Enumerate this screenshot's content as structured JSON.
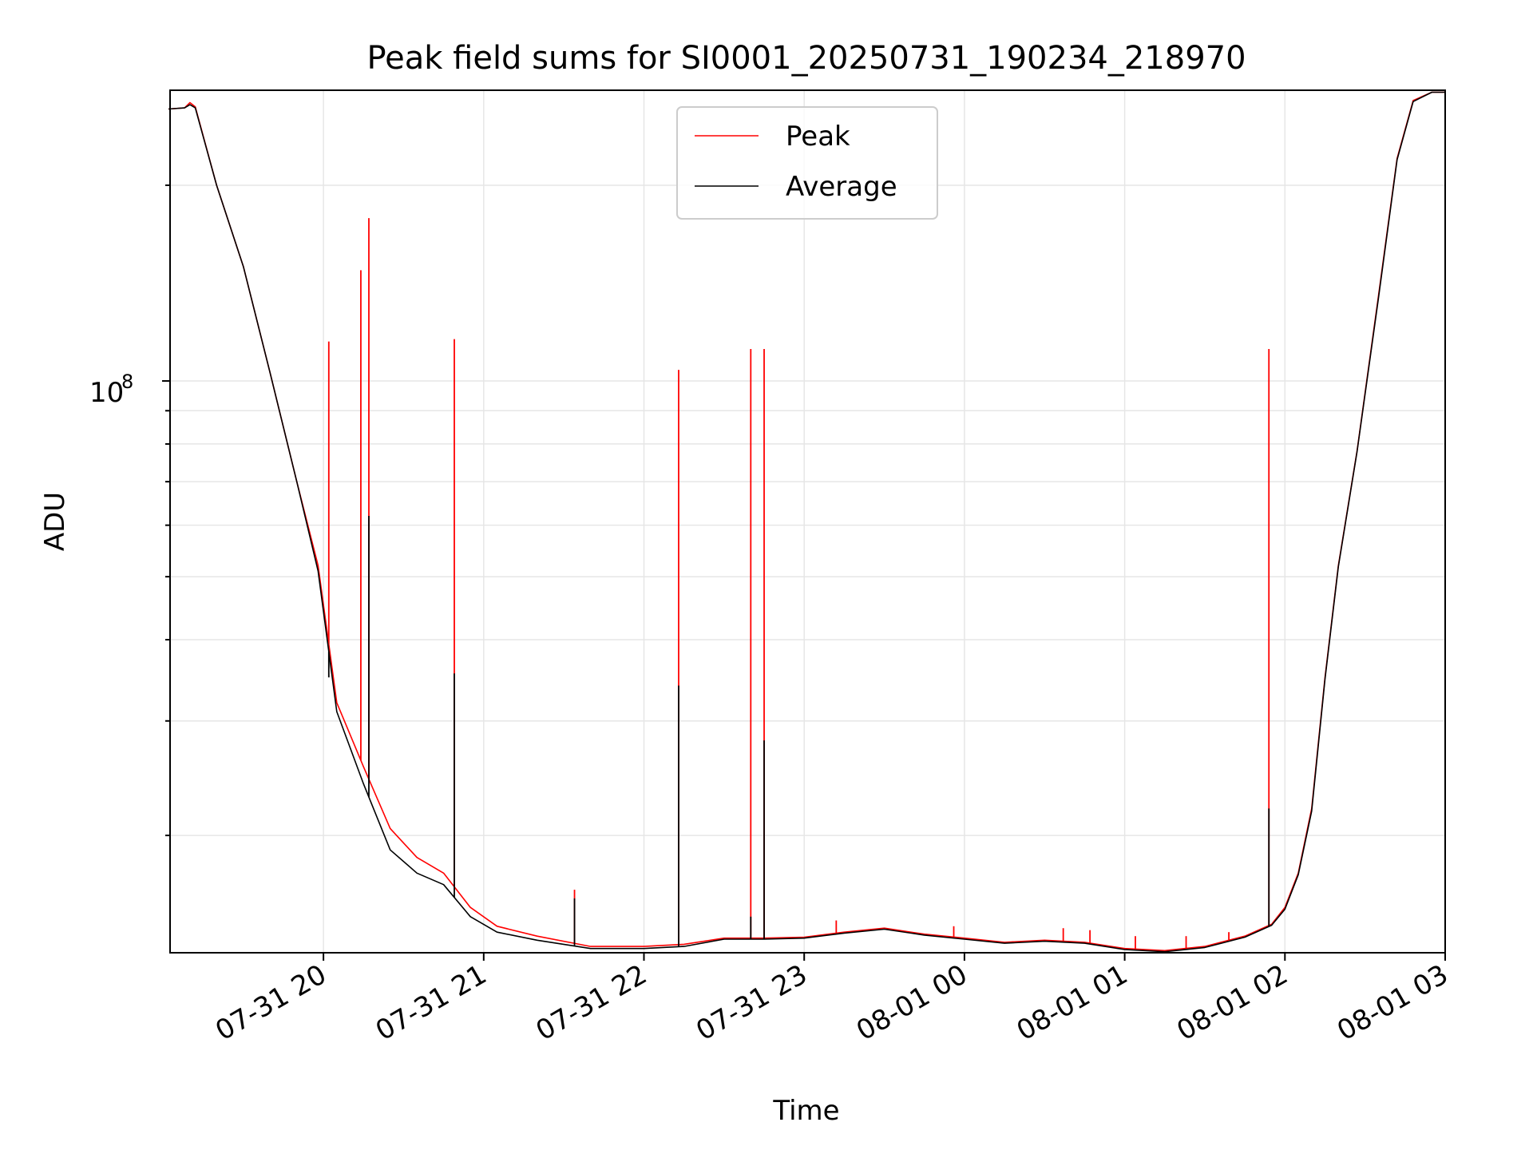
{
  "chart_data": {
    "type": "line",
    "title": "Peak field sums for SI0001_20250731_190234_218970",
    "xlabel": "Time",
    "ylabel": "ADU",
    "yscale": "log",
    "ylim": [
      13200000,
      280000000
    ],
    "xlim": [
      "2025-07-31 19:02:34",
      "2025-08-01 03:00:00"
    ],
    "x_ticks": [
      "07-31 20",
      "07-31 21",
      "07-31 22",
      "07-31 23",
      "08-01 00",
      "08-01 01",
      "08-01 02",
      "08-01 03"
    ],
    "y_major_tick_label": "10",
    "y_major_tick_exponent": "8",
    "grid": true,
    "legend_position": "top-center",
    "colors": {
      "Peak": "#ff0000",
      "Average": "#000000",
      "grid": "#e6e6e6"
    },
    "series": [
      {
        "name": "Peak",
        "baseline": [
          [
            "2025-07-31 19:02",
            262000000
          ],
          [
            "2025-07-31 19:08",
            263000000
          ],
          [
            "2025-07-31 19:10",
            268000000
          ],
          [
            "2025-07-31 19:12",
            264000000
          ],
          [
            "2025-07-31 19:20",
            200000000
          ],
          [
            "2025-07-31 19:30",
            150000000
          ],
          [
            "2025-07-31 19:40",
            103000000
          ],
          [
            "2025-07-31 19:50",
            70000000
          ],
          [
            "2025-07-31 19:58",
            52000000
          ],
          [
            "2025-07-31 20:05",
            32000000
          ],
          [
            "2025-07-31 20:15",
            25500000
          ],
          [
            "2025-07-31 20:25",
            20500000
          ],
          [
            "2025-07-31 20:35",
            18500000
          ],
          [
            "2025-07-31 20:45",
            17500000
          ],
          [
            "2025-07-31 20:55",
            15500000
          ],
          [
            "2025-07-31 21:05",
            14500000
          ],
          [
            "2025-07-31 21:20",
            14000000
          ],
          [
            "2025-07-31 21:40",
            13500000
          ],
          [
            "2025-07-31 22:00",
            13500000
          ],
          [
            "2025-07-31 22:15",
            13600000
          ],
          [
            "2025-07-31 22:30",
            13900000
          ],
          [
            "2025-07-31 22:45",
            13900000
          ],
          [
            "2025-07-31 23:00",
            13950000
          ],
          [
            "2025-07-31 23:15",
            14200000
          ],
          [
            "2025-07-31 23:30",
            14400000
          ],
          [
            "2025-07-31 23:45",
            14100000
          ],
          [
            "2025-08-01 00:00",
            13900000
          ],
          [
            "2025-08-01 00:15",
            13700000
          ],
          [
            "2025-08-01 00:30",
            13800000
          ],
          [
            "2025-08-01 00:45",
            13700000
          ],
          [
            "2025-08-01 01:00",
            13400000
          ],
          [
            "2025-08-01 01:15",
            13300000
          ],
          [
            "2025-08-01 01:30",
            13500000
          ],
          [
            "2025-08-01 01:45",
            14000000
          ],
          [
            "2025-08-01 01:55",
            14600000
          ],
          [
            "2025-08-01 02:00",
            15500000
          ],
          [
            "2025-08-01 02:05",
            17500000
          ],
          [
            "2025-08-01 02:10",
            22000000
          ],
          [
            "2025-08-01 02:15",
            35000000
          ],
          [
            "2025-08-01 02:20",
            52000000
          ],
          [
            "2025-08-01 02:27",
            78000000
          ],
          [
            "2025-08-01 02:35",
            135000000
          ],
          [
            "2025-08-01 02:42",
            220000000
          ],
          [
            "2025-08-01 02:48",
            270000000
          ],
          [
            "2025-08-01 02:55",
            278000000
          ],
          [
            "2025-08-01 03:00",
            278000000
          ]
        ],
        "spikes": [
          [
            "2025-07-31 20:02",
            115000000
          ],
          [
            "2025-07-31 20:14",
            148000000
          ],
          [
            "2025-07-31 20:17",
            178000000
          ],
          [
            "2025-07-31 20:49",
            116000000
          ],
          [
            "2025-07-31 21:34",
            16500000
          ],
          [
            "2025-07-31 22:13",
            104000000
          ],
          [
            "2025-07-31 22:40",
            112000000
          ],
          [
            "2025-07-31 22:45",
            112000000
          ],
          [
            "2025-07-31 23:12",
            14800000
          ],
          [
            "2025-07-31 23:56",
            14500000
          ],
          [
            "2025-08-01 00:37",
            14400000
          ],
          [
            "2025-08-01 00:47",
            14300000
          ],
          [
            "2025-08-01 01:04",
            14000000
          ],
          [
            "2025-08-01 01:23",
            14000000
          ],
          [
            "2025-08-01 01:39",
            14200000
          ],
          [
            "2025-08-01 01:54",
            112000000
          ]
        ]
      },
      {
        "name": "Average",
        "baseline": [
          [
            "2025-07-31 19:02",
            262000000
          ],
          [
            "2025-07-31 19:08",
            263000000
          ],
          [
            "2025-07-31 19:10",
            266000000
          ],
          [
            "2025-07-31 19:12",
            263000000
          ],
          [
            "2025-07-31 19:20",
            200000000
          ],
          [
            "2025-07-31 19:30",
            150000000
          ],
          [
            "2025-07-31 19:40",
            103000000
          ],
          [
            "2025-07-31 19:50",
            70000000
          ],
          [
            "2025-07-31 19:58",
            51000000
          ],
          [
            "2025-07-31 20:05",
            31000000
          ],
          [
            "2025-07-31 20:15",
            24000000
          ],
          [
            "2025-07-31 20:25",
            19000000
          ],
          [
            "2025-07-31 20:35",
            17500000
          ],
          [
            "2025-07-31 20:45",
            16800000
          ],
          [
            "2025-07-31 20:55",
            15000000
          ],
          [
            "2025-07-31 21:05",
            14200000
          ],
          [
            "2025-07-31 21:20",
            13800000
          ],
          [
            "2025-07-31 21:40",
            13400000
          ],
          [
            "2025-07-31 22:00",
            13400000
          ],
          [
            "2025-07-31 22:15",
            13500000
          ],
          [
            "2025-07-31 22:30",
            13850000
          ],
          [
            "2025-07-31 22:45",
            13850000
          ],
          [
            "2025-07-31 23:00",
            13900000
          ],
          [
            "2025-07-31 23:15",
            14150000
          ],
          [
            "2025-07-31 23:30",
            14350000
          ],
          [
            "2025-07-31 23:45",
            14050000
          ],
          [
            "2025-08-01 00:00",
            13850000
          ],
          [
            "2025-08-01 00:15",
            13650000
          ],
          [
            "2025-08-01 00:30",
            13750000
          ],
          [
            "2025-08-01 00:45",
            13650000
          ],
          [
            "2025-08-01 01:00",
            13350000
          ],
          [
            "2025-08-01 01:15",
            13250000
          ],
          [
            "2025-08-01 01:30",
            13450000
          ],
          [
            "2025-08-01 01:45",
            13950000
          ],
          [
            "2025-08-01 01:55",
            14550000
          ],
          [
            "2025-08-01 02:00",
            15400000
          ],
          [
            "2025-08-01 02:05",
            17400000
          ],
          [
            "2025-08-01 02:10",
            21800000
          ],
          [
            "2025-08-01 02:15",
            34800000
          ],
          [
            "2025-08-01 02:20",
            51800000
          ],
          [
            "2025-08-01 02:27",
            77800000
          ],
          [
            "2025-08-01 02:35",
            134000000
          ],
          [
            "2025-08-01 02:42",
            219000000
          ],
          [
            "2025-08-01 02:48",
            269000000
          ],
          [
            "2025-08-01 02:55",
            278000000
          ],
          [
            "2025-08-01 03:00",
            278000000
          ]
        ],
        "spikes": [
          [
            "2025-07-31 20:02",
            35000000
          ],
          [
            "2025-07-31 20:17",
            62000000
          ],
          [
            "2025-07-31 20:49",
            35500000
          ],
          [
            "2025-07-31 21:34",
            16000000
          ],
          [
            "2025-07-31 22:13",
            34000000
          ],
          [
            "2025-07-31 22:40",
            15000000
          ],
          [
            "2025-07-31 22:45",
            28000000
          ],
          [
            "2025-08-01 01:54",
            22000000
          ]
        ]
      }
    ]
  }
}
